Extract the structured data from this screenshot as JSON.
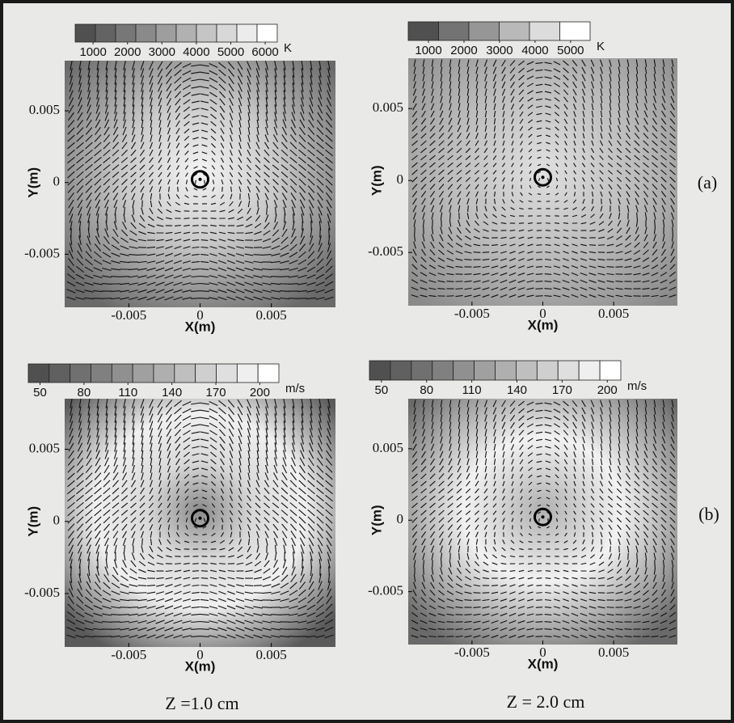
{
  "chart_data": [
    {
      "type": "contour",
      "xlabel": "X(m)",
      "ylabel": "Y(m)",
      "xlim": [
        -0.0095,
        0.0095
      ],
      "ylim": [
        -0.0087,
        0.0085
      ],
      "xticks": [
        -0.005,
        0,
        0.005
      ],
      "yticks": [
        -0.005,
        0,
        0.005
      ],
      "colorbar": {
        "ticks": [
          1000,
          2000,
          3000,
          4000,
          5000,
          6000
        ],
        "unit": "K",
        "lim": [
          480,
          6350
        ]
      }
    },
    {
      "type": "contour",
      "xlabel": "X(m)",
      "ylabel": "Y(m)",
      "xlim": [
        -0.0095,
        0.0095
      ],
      "ylim": [
        -0.0087,
        0.0085
      ],
      "xticks": [
        -0.005,
        0,
        0.005
      ],
      "yticks": [
        -0.005,
        0,
        0.005
      ],
      "colorbar": {
        "ticks": [
          1000,
          2000,
          3000,
          4000,
          5000
        ],
        "unit": "K",
        "lim": [
          430,
          5550
        ]
      }
    },
    {
      "type": "contour",
      "xlabel": "X(m)",
      "ylabel": "Y(m)",
      "xlim": [
        -0.0095,
        0.0095
      ],
      "ylim": [
        -0.0087,
        0.0085
      ],
      "xticks": [
        -0.005,
        0,
        0.005
      ],
      "yticks": [
        -0.005,
        0,
        0.005
      ],
      "colorbar": {
        "ticks": [
          50,
          80,
          110,
          140,
          170,
          200
        ],
        "unit": "m/s",
        "lim": [
          42,
          213
        ]
      }
    },
    {
      "type": "contour",
      "xlabel": "X(m)",
      "ylabel": "Y(m)",
      "xlim": [
        -0.0095,
        0.0095
      ],
      "ylim": [
        -0.0087,
        0.0085
      ],
      "xticks": [
        -0.005,
        0,
        0.005
      ],
      "yticks": [
        -0.005,
        0,
        0.005
      ],
      "colorbar": {
        "ticks": [
          50,
          80,
          110,
          140,
          170,
          200
        ],
        "unit": "m/s",
        "lim": [
          42,
          209
        ]
      }
    }
  ],
  "row_labels": [
    "(a)",
    "(b)"
  ],
  "column_labels": [
    "Z =1.0 cm",
    "Z = 2.0 cm"
  ]
}
